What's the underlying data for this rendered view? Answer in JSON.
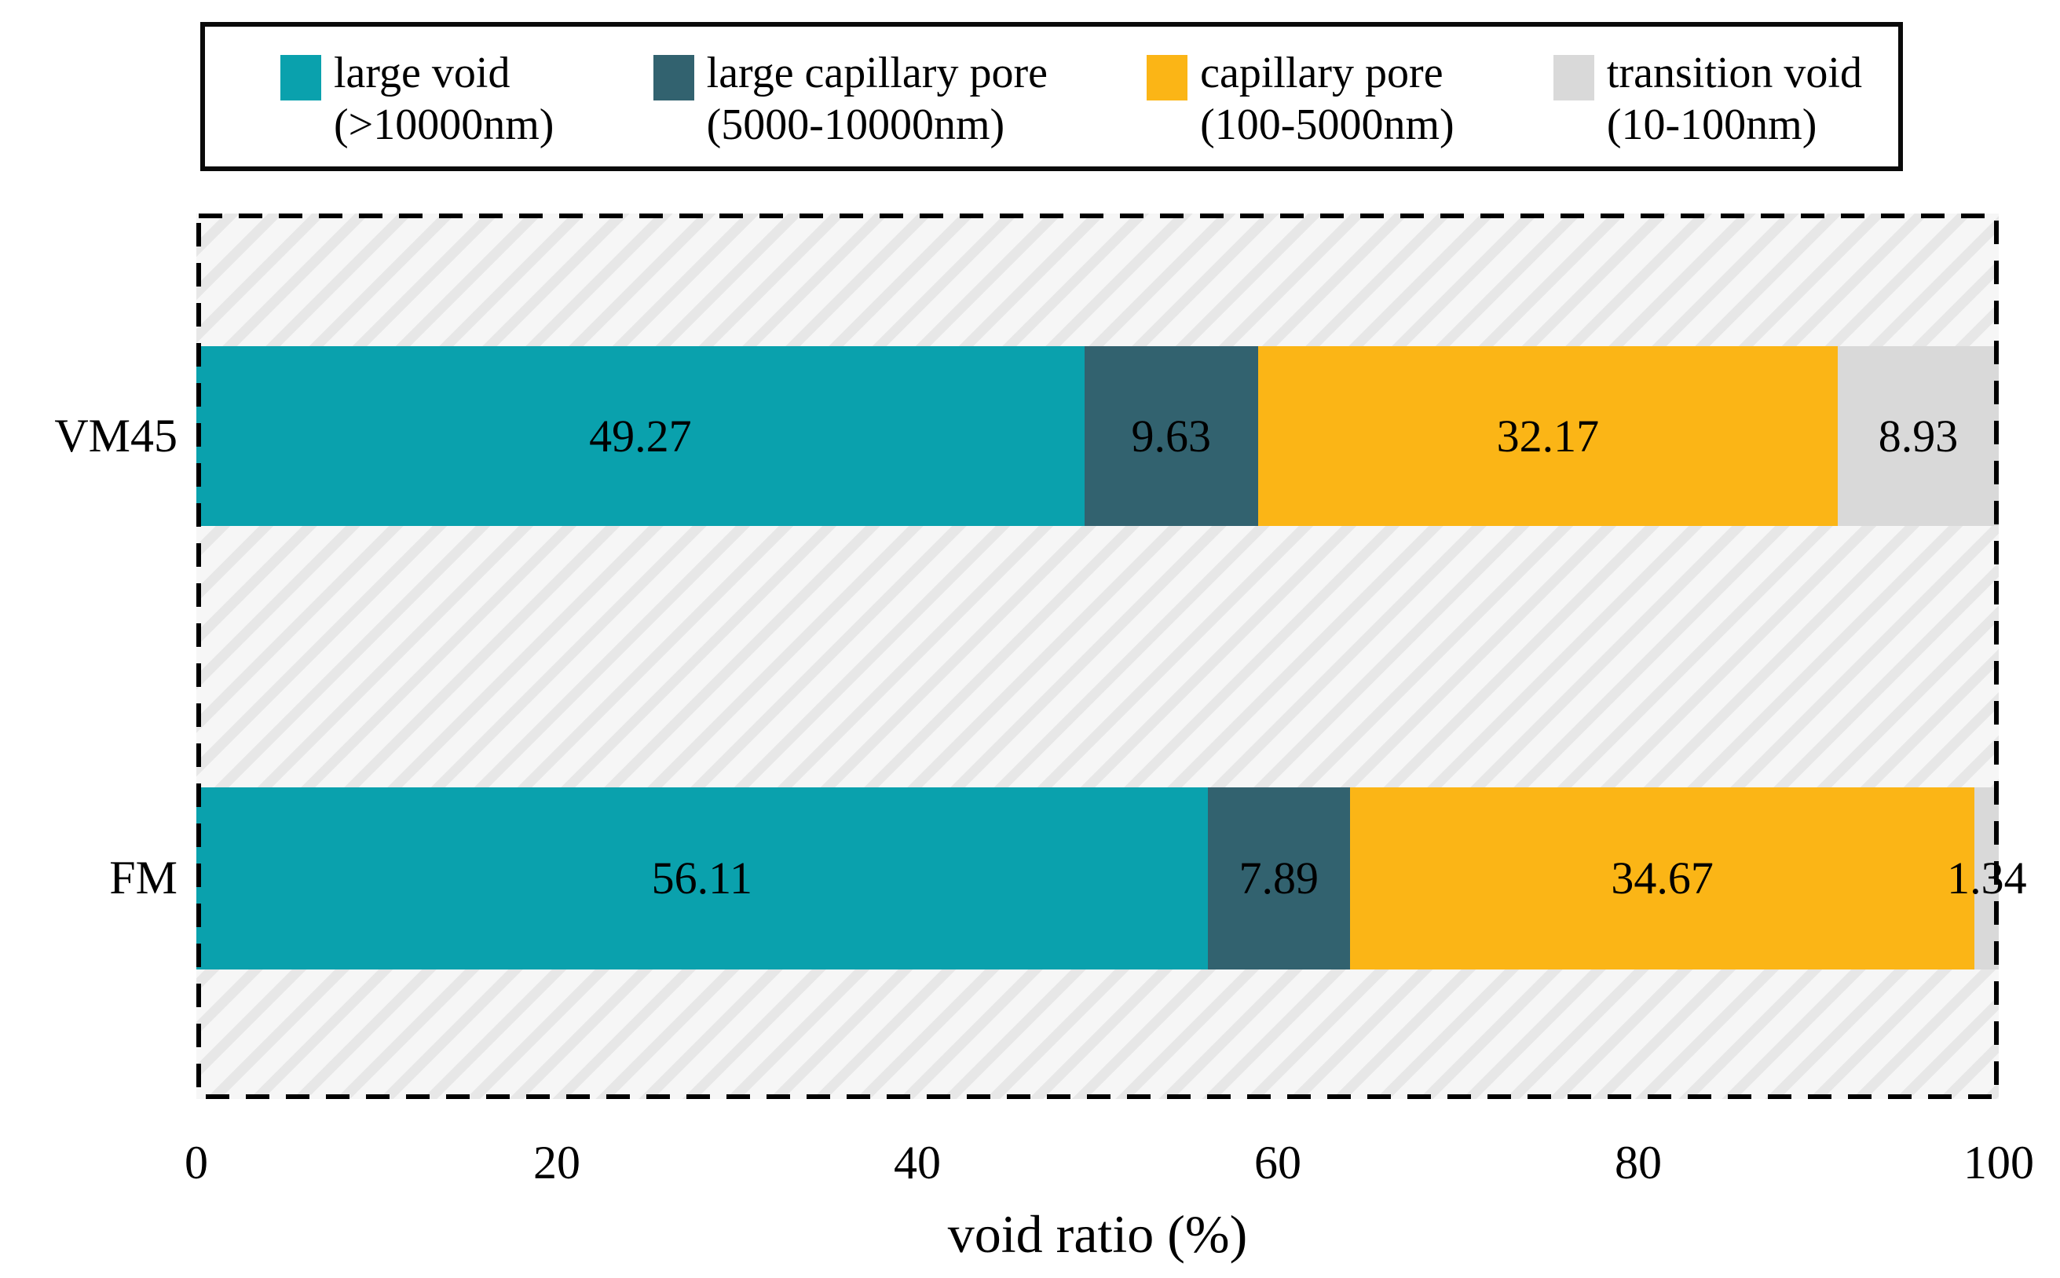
{
  "chart_data": {
    "type": "bar",
    "orientation": "horizontal_stacked",
    "title": "",
    "xlabel": "void ratio (%)",
    "xlim": [
      0,
      100
    ],
    "xticks": [
      "0",
      "20",
      "40",
      "60",
      "80",
      "100"
    ],
    "categories": [
      "VM45",
      "FM"
    ],
    "series": [
      {
        "name": "large void",
        "range": "(>10000nm)",
        "color": "#0aa1ad",
        "values": [
          49.27,
          56.11
        ],
        "labels": [
          "49.27",
          "56.11"
        ]
      },
      {
        "name": "large capillary pore",
        "range": "(5000-10000nm)",
        "color": "#32626f",
        "values": [
          9.63,
          7.89
        ],
        "labels": [
          "9.63",
          "7.89"
        ]
      },
      {
        "name": "capillary pore",
        "range": "(100-5000nm)",
        "color": "#fbb516",
        "values": [
          32.17,
          34.67
        ],
        "labels": [
          "32.17",
          "34.67"
        ]
      },
      {
        "name": "transition void",
        "range": "(10-100nm)",
        "color": "#d9d9d9",
        "values": [
          8.93,
          1.34
        ],
        "labels": [
          "8.93",
          "1.34"
        ]
      }
    ],
    "legend_position": "top",
    "grid": false,
    "plot_background": "diagonal-hatch",
    "styles": {
      "hatch_light": "#f6f6f6",
      "hatch_dark": "#e7e7e7",
      "border_color": "#000000",
      "text_color": "#000000"
    }
  }
}
